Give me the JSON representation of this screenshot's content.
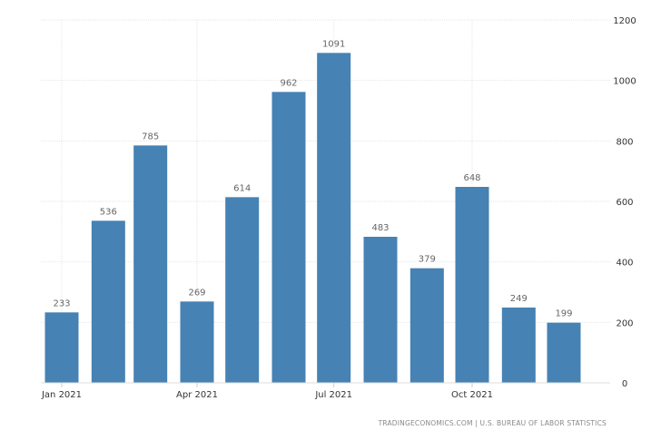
{
  "chart_data": {
    "type": "bar",
    "categories": [
      "2021-01",
      "2021-02",
      "2021-03",
      "2021-04",
      "2021-05",
      "2021-06",
      "2021-07",
      "2021-08",
      "2021-09",
      "2021-10",
      "2021-11",
      "2021-12"
    ],
    "values": [
      233,
      536,
      785,
      269,
      614,
      962,
      1091,
      483,
      379,
      648,
      249,
      199
    ],
    "x_ticks": [
      {
        "date": "2021-01",
        "label": "Jan 2021"
      },
      {
        "date": "2021-04",
        "label": "Apr 2021"
      },
      {
        "date": "2021-07",
        "label": "Jul 2021"
      },
      {
        "date": "2021-10",
        "label": "Oct 2021"
      }
    ],
    "y_ticks": [
      0,
      200,
      400,
      600,
      800,
      1000,
      1200
    ],
    "ylim": [
      0,
      1200
    ],
    "y_axis_side": "right",
    "grid": true,
    "data_labels": true,
    "bar_color": "#4682b4",
    "title": "",
    "xlabel": "",
    "ylabel": ""
  },
  "source": "TRADINGECONOMICS.COM  |  U.S. BUREAU OF LABOR STATISTICS"
}
